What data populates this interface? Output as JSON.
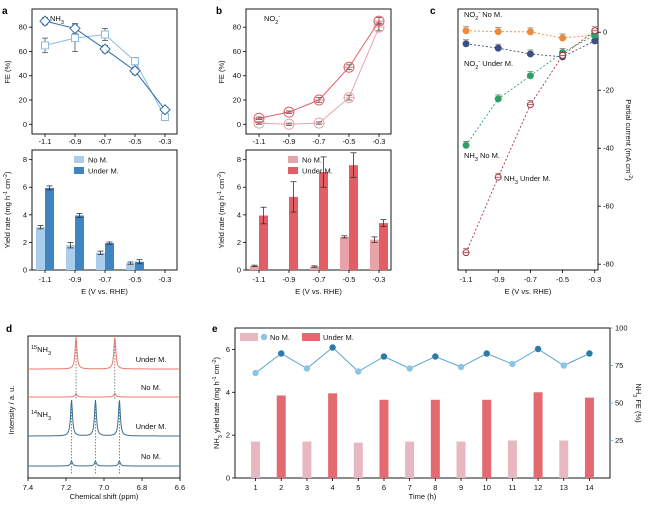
{
  "colors": {
    "light_blue": "#a9cdea",
    "dark_blue": "#3f85c2",
    "panel_a_line_light": "#8cbde0",
    "panel_a_line_dark": "#2f6ea8",
    "light_red": "#e8a3a9",
    "dark_red": "#e35d64",
    "orange": "#ee8a3c",
    "navy": "#3a4f82",
    "green": "#2ea06a",
    "maroon": "#b0343c",
    "nmr_red": "#e97a6f",
    "nmr_blue": "#3d6f8d",
    "e_light": "#e8b8c2",
    "e_dark": "#e26a70",
    "e_line": "#5aa6d0"
  },
  "chart_data": [
    {
      "panel": "a",
      "type": "line",
      "label": "NH3",
      "x": [
        "-1.1",
        "-0.9",
        "-0.7",
        "-0.5",
        "-0.3"
      ],
      "ylabel": "FE (%)",
      "yticks": [
        "0",
        "20",
        "40",
        "60",
        "80"
      ],
      "ylim": [
        -8,
        95
      ],
      "series": [
        {
          "name": "No M.",
          "values": [
            65,
            71,
            74,
            52,
            6
          ],
          "errors": [
            6,
            11,
            5,
            3,
            3
          ]
        },
        {
          "name": "Under M.",
          "values": [
            85,
            79,
            62,
            44,
            12
          ],
          "errors": [
            3,
            4,
            3,
            3,
            2
          ]
        }
      ]
    },
    {
      "panel": "a",
      "type": "bar",
      "categories": [
        "-1.1",
        "-0.9",
        "-0.7",
        "-0.5",
        "-0.3"
      ],
      "xlabel": "E (V vs. RHE)",
      "ylabel": "Yield rate (mg h-1 cm-2)",
      "yticks": [
        "0",
        "2",
        "4",
        "6",
        "8"
      ],
      "ylim": [
        0,
        8.7
      ],
      "legend": [
        "No M.",
        "Under M."
      ],
      "series": [
        {
          "name": "No M.",
          "values": [
            3.1,
            1.8,
            1.25,
            0.5,
            0.0
          ],
          "errors": [
            0.12,
            0.2,
            0.12,
            0.08,
            0.0
          ]
        },
        {
          "name": "Under M.",
          "values": [
            5.95,
            3.95,
            1.95,
            0.6,
            0.0
          ],
          "errors": [
            0.15,
            0.15,
            0.08,
            0.15,
            0.0
          ]
        }
      ]
    },
    {
      "panel": "b",
      "type": "line",
      "label": "NO2-",
      "x": [
        "-1.1",
        "-0.9",
        "-0.7",
        "-0.5",
        "-0.3"
      ],
      "ylabel": "FE (%)",
      "yticks": [
        "0",
        "20",
        "40",
        "60",
        "80"
      ],
      "ylim": [
        -8,
        95
      ],
      "series": [
        {
          "name": "No M.",
          "values": [
            1,
            0,
            1,
            22,
            80
          ],
          "errors": [
            1,
            1,
            1,
            2,
            3
          ]
        },
        {
          "name": "Under M.",
          "values": [
            5,
            10,
            20,
            47,
            85
          ],
          "errors": [
            1,
            1,
            2,
            2,
            3
          ]
        }
      ]
    },
    {
      "panel": "b",
      "type": "bar",
      "categories": [
        "-1.1",
        "-0.9",
        "-0.7",
        "-0.5",
        "-0.3"
      ],
      "xlabel": "E (V vs. RHE)",
      "ylabel": "Yield rate (mg h-1 cm-2)",
      "yticks": [
        "0",
        "2",
        "4",
        "6",
        "8"
      ],
      "ylim": [
        0,
        8.7
      ],
      "legend": [
        "No M.",
        "Under M."
      ],
      "series": [
        {
          "name": "No M.",
          "values": [
            0.3,
            0.0,
            0.25,
            2.4,
            2.2
          ],
          "errors": [
            0.05,
            0.0,
            0.05,
            0.08,
            0.2
          ]
        },
        {
          "name": "Under M.",
          "values": [
            3.95,
            5.3,
            7.1,
            7.6,
            3.4
          ],
          "errors": [
            0.6,
            1.1,
            1.1,
            0.9,
            0.25
          ]
        }
      ]
    },
    {
      "panel": "c",
      "type": "scatter",
      "x": [
        -1.1,
        -0.9,
        -0.7,
        -0.5,
        -0.3
      ],
      "xticks": [
        "-1.1",
        "-0.9",
        "-0.7",
        "-0.5",
        "-0.3"
      ],
      "xlabel": "E (V vs. RHE)",
      "ylabel": "Partial current (mA cm-2)",
      "yticks": [
        "0",
        "-20",
        "-40",
        "-60",
        "-80"
      ],
      "ylim": [
        -82,
        8
      ],
      "series": [
        {
          "name": "NO2- No M.",
          "label": "NO₂⁻ No M.",
          "values": [
            0.5,
            0.2,
            0.1,
            -2,
            -1
          ]
        },
        {
          "name": "NO2- Under M.",
          "label": "NO₂⁻ Under M.",
          "values": [
            -4,
            -5.5,
            -7.5,
            -8.5,
            -3
          ]
        },
        {
          "name": "NH3 No M.",
          "label": "NH₃ No M.",
          "values": [
            -39,
            -23,
            -15,
            -7,
            -1
          ]
        },
        {
          "name": "NH3 Under M.",
          "label": "NH₃ Under M.",
          "values": [
            -76,
            -50,
            -25,
            -8,
            0.5
          ]
        }
      ]
    },
    {
      "panel": "d",
      "type": "line",
      "xlabel": "Chemical shift (ppm)",
      "ylabel": "Intensity / a. u.",
      "xticks": [
        "7.4",
        "7.2",
        "7.0",
        "6.8",
        "6.6"
      ],
      "xlim": [
        7.4,
        6.6
      ],
      "species": [
        "15NH3",
        "14NH3"
      ],
      "peaks_15NH3": [
        7.147,
        6.943
      ],
      "peaks_14NH3": [
        7.171,
        7.045,
        6.919
      ],
      "traces": [
        {
          "name": "Under M.",
          "species": "15NH3",
          "height": 1.0
        },
        {
          "name": "No M.",
          "species": "15NH3",
          "height": 0.35
        },
        {
          "name": "Under M.",
          "species": "14NH3",
          "height": 1.0
        },
        {
          "name": "No M.",
          "species": "14NH3",
          "height": 0.4
        }
      ]
    },
    {
      "panel": "e",
      "type": "bar",
      "categories": [
        "1",
        "2",
        "3",
        "4",
        "5",
        "6",
        "7",
        "8",
        "9",
        "10",
        "11",
        "12",
        "13",
        "14"
      ],
      "xlabel": "Time (h)",
      "ylabel": "NH3 yield rate (mg h-1 cm-2)",
      "yticks": [
        "0",
        "2",
        "4",
        "6"
      ],
      "ylim": [
        0,
        7
      ],
      "y2label": "NH3 FE (%)",
      "y2ticks": [
        "25",
        "50",
        "75",
        "100"
      ],
      "y2lim": [
        0,
        100
      ],
      "legend": [
        "No M.",
        "Under M."
      ],
      "series": [
        {
          "name": "Yield",
          "values": [
            1.7,
            3.85,
            1.7,
            3.95,
            1.65,
            3.65,
            1.7,
            3.65,
            1.7,
            3.65,
            1.75,
            4.0,
            1.75,
            3.75
          ]
        },
        {
          "name": "FE",
          "values": [
            70,
            83,
            73,
            87,
            71,
            81,
            73,
            81,
            74,
            83,
            76,
            86,
            75,
            83
          ]
        }
      ]
    }
  ]
}
